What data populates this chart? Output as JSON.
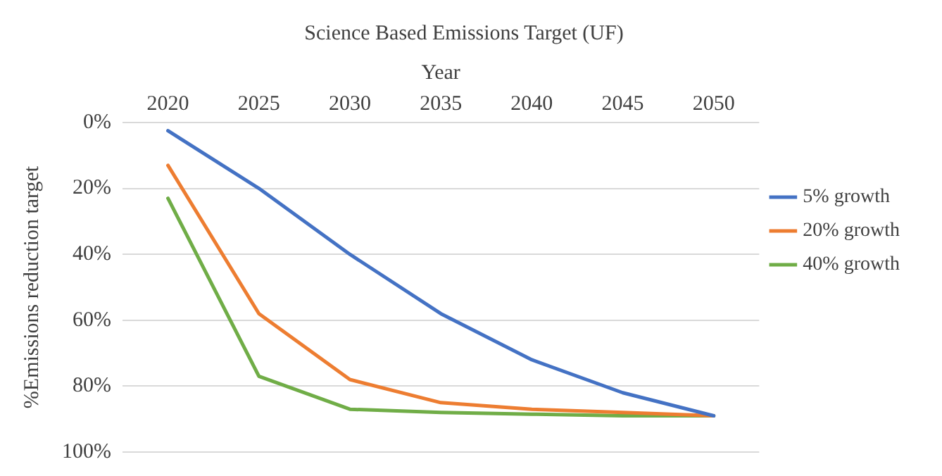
{
  "chart_data": {
    "type": "line",
    "title": "Science Based Emissions Target (UF)",
    "xlabel": "Year",
    "ylabel": "%Emissions reduction target",
    "categories": [
      "2020",
      "2025",
      "2030",
      "2035",
      "2040",
      "2045",
      "2050"
    ],
    "series": [
      {
        "name": "5% growth",
        "color": "#4472c4",
        "values": [
          2.5,
          20,
          40,
          58,
          72,
          82,
          89
        ]
      },
      {
        "name": "20% growth",
        "color": "#ed7d31",
        "values": [
          13,
          58,
          78,
          85,
          87,
          88,
          89
        ]
      },
      {
        "name": "40% growth",
        "color": "#70ad47",
        "values": [
          23,
          77,
          87,
          88,
          88.5,
          89,
          89
        ]
      }
    ],
    "ylim": [
      100,
      0
    ],
    "yticks": [
      {
        "value": 0,
        "label": "0%"
      },
      {
        "value": 20,
        "label": "20%"
      },
      {
        "value": 40,
        "label": "40%"
      },
      {
        "value": 60,
        "label": "60%"
      },
      {
        "value": 80,
        "label": "80%"
      },
      {
        "value": 100,
        "label": "100%"
      }
    ],
    "grid": "y",
    "legend": "right",
    "marker": "none",
    "line_style": "solid"
  }
}
